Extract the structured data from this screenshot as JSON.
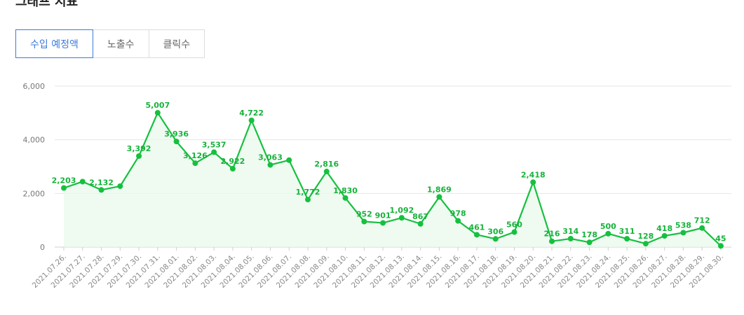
{
  "page": {
    "title": "그래프 지표"
  },
  "tabs": [
    {
      "label": "수입 예정액",
      "active": true
    },
    {
      "label": "노출수",
      "active": false
    },
    {
      "label": "클릭수",
      "active": false
    }
  ],
  "colors": {
    "accent": "#3d7bd9",
    "series": "#16c03f",
    "area": "#eaf8ec",
    "label": "#16b33a"
  },
  "chart_data": {
    "type": "area",
    "title": "",
    "xlabel": "",
    "ylabel": "",
    "ylim": [
      0,
      6000
    ],
    "y_ticks": [
      "0",
      "2,000",
      "4,000",
      "6,000"
    ],
    "grid": true,
    "categories": [
      "2021.07.26.",
      "2021.07.27.",
      "2021.07.28.",
      "2021.07.29.",
      "2021.07.30.",
      "2021.07.31.",
      "2021.08.01.",
      "2021.08.02.",
      "2021.08.03.",
      "2021.08.04.",
      "2021.08.05.",
      "2021.08.06.",
      "2021.08.07.",
      "2021.08.08.",
      "2021.08.09.",
      "2021.08.10.",
      "2021.08.11.",
      "2021.08.12.",
      "2021.08.13.",
      "2021.08.14.",
      "2021.08.15.",
      "2021.08.16.",
      "2021.08.17.",
      "2021.08.18.",
      "2021.08.19.",
      "2021.08.20.",
      "2021.08.21.",
      "2021.08.22.",
      "2021.08.23.",
      "2021.08.24.",
      "2021.08.25.",
      "2021.08.26.",
      "2021.08.27.",
      "2021.08.28.",
      "2021.08.29.",
      "2021.08.30."
    ],
    "values": [
      2203,
      2440,
      2132,
      2270,
      3392,
      5007,
      3936,
      3126,
      3537,
      2922,
      4722,
      3063,
      3240,
      1772,
      2816,
      1830,
      952,
      901,
      1092,
      867,
      1869,
      978,
      461,
      306,
      560,
      2418,
      216,
      314,
      178,
      500,
      311,
      128,
      418,
      538,
      712,
      45
    ],
    "data_labels": [
      "2,203",
      "",
      "2,132",
      "",
      "3,392",
      "5,007",
      "3,936",
      "3,126",
      "3,537",
      "2,922",
      "4,722",
      "3,063",
      "",
      "1,772",
      "2,816",
      "1,830",
      "952",
      "901",
      "1,092",
      "867",
      "1,869",
      "978",
      "461",
      "306",
      "560",
      "2,418",
      "216",
      "314",
      "178",
      "500",
      "311",
      "128",
      "418",
      "538",
      "712",
      "45"
    ]
  }
}
